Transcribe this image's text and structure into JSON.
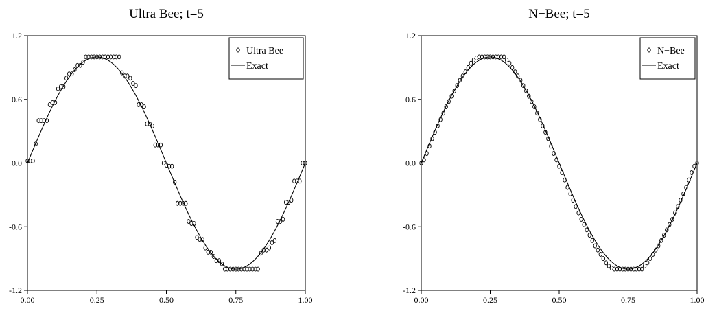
{
  "chart_data": [
    {
      "type": "line",
      "title": "Ultra Bee; t=5",
      "xlabel": "",
      "ylabel": "",
      "xlim": [
        0.0,
        1.0
      ],
      "ylim": [
        -1.2,
        1.2
      ],
      "x_ticks": [
        "0.00",
        "0.25",
        "0.50",
        "0.75",
        "1.00"
      ],
      "y_ticks": [
        "1.2",
        "0.6",
        "0.0",
        "-0.6",
        "-1.2"
      ],
      "zero_line": "dotted",
      "legend_position": "top-right",
      "series": [
        {
          "name": "Ultra Bee",
          "style": "open-circle-markers",
          "x": [
            0.0,
            0.01,
            0.02,
            0.03,
            0.04,
            0.05,
            0.06,
            0.07,
            0.08,
            0.09,
            0.1,
            0.11,
            0.12,
            0.13,
            0.14,
            0.15,
            0.16,
            0.17,
            0.18,
            0.19,
            0.2,
            0.21,
            0.22,
            0.23,
            0.24,
            0.25,
            0.26,
            0.27,
            0.28,
            0.29,
            0.3,
            0.31,
            0.32,
            0.33,
            0.34,
            0.35,
            0.36,
            0.37,
            0.38,
            0.39,
            0.4,
            0.41,
            0.42,
            0.43,
            0.44,
            0.45,
            0.46,
            0.47,
            0.48,
            0.49,
            0.5,
            0.51,
            0.52,
            0.53,
            0.54,
            0.55,
            0.56,
            0.57,
            0.58,
            0.59,
            0.6,
            0.61,
            0.62,
            0.63,
            0.64,
            0.65,
            0.66,
            0.67,
            0.68,
            0.69,
            0.7,
            0.71,
            0.72,
            0.73,
            0.74,
            0.75,
            0.76,
            0.77,
            0.78,
            0.79,
            0.8,
            0.81,
            0.82,
            0.83,
            0.84,
            0.85,
            0.86,
            0.87,
            0.88,
            0.89,
            0.9,
            0.91,
            0.92,
            0.93,
            0.94,
            0.95,
            0.96,
            0.97,
            0.98,
            0.99,
            1.0
          ],
          "y": [
            0.02,
            0.02,
            0.02,
            0.18,
            0.4,
            0.4,
            0.4,
            0.4,
            0.55,
            0.57,
            0.57,
            0.7,
            0.72,
            0.72,
            0.8,
            0.84,
            0.84,
            0.88,
            0.92,
            0.92,
            0.95,
            1.0,
            1.0,
            1.0,
            1.0,
            1.0,
            1.0,
            1.0,
            1.0,
            1.0,
            1.0,
            1.0,
            1.0,
            1.0,
            0.85,
            0.82,
            0.82,
            0.8,
            0.75,
            0.73,
            0.55,
            0.55,
            0.53,
            0.37,
            0.37,
            0.35,
            0.17,
            0.17,
            0.17,
            0.0,
            -0.02,
            -0.03,
            -0.03,
            -0.18,
            -0.38,
            -0.38,
            -0.38,
            -0.38,
            -0.55,
            -0.57,
            -0.57,
            -0.7,
            -0.72,
            -0.72,
            -0.8,
            -0.84,
            -0.84,
            -0.88,
            -0.92,
            -0.92,
            -0.95,
            -1.0,
            -1.0,
            -1.0,
            -1.0,
            -1.0,
            -1.0,
            -1.0,
            -1.0,
            -1.0,
            -1.0,
            -1.0,
            -1.0,
            -1.0,
            -0.85,
            -0.82,
            -0.82,
            -0.8,
            -0.75,
            -0.73,
            -0.55,
            -0.55,
            -0.53,
            -0.37,
            -0.37,
            -0.35,
            -0.17,
            -0.17,
            -0.17,
            0.0,
            0.0
          ]
        },
        {
          "name": "Exact",
          "style": "solid-line",
          "function": "sin(2*pi*x)"
        }
      ]
    },
    {
      "type": "line",
      "title": "N−Bee; t=5",
      "xlabel": "",
      "ylabel": "",
      "xlim": [
        0.0,
        1.0
      ],
      "ylim": [
        -1.2,
        1.2
      ],
      "x_ticks": [
        "0.00",
        "0.25",
        "0.50",
        "0.75",
        "1.00"
      ],
      "y_ticks": [
        "1.2",
        "0.6",
        "0.0",
        "-0.6",
        "-1.2"
      ],
      "zero_line": "dotted",
      "legend_position": "top-right",
      "series": [
        {
          "name": "N−Bee",
          "style": "open-circle-markers",
          "x": [
            0.0,
            0.01,
            0.02,
            0.03,
            0.04,
            0.05,
            0.06,
            0.07,
            0.08,
            0.09,
            0.1,
            0.11,
            0.12,
            0.13,
            0.14,
            0.15,
            0.16,
            0.17,
            0.18,
            0.19,
            0.2,
            0.21,
            0.22,
            0.23,
            0.24,
            0.25,
            0.26,
            0.27,
            0.28,
            0.29,
            0.3,
            0.31,
            0.32,
            0.33,
            0.34,
            0.35,
            0.36,
            0.37,
            0.38,
            0.39,
            0.4,
            0.41,
            0.42,
            0.43,
            0.44,
            0.45,
            0.46,
            0.47,
            0.48,
            0.49,
            0.5,
            0.51,
            0.52,
            0.53,
            0.54,
            0.55,
            0.56,
            0.57,
            0.58,
            0.59,
            0.6,
            0.61,
            0.62,
            0.63,
            0.64,
            0.65,
            0.66,
            0.67,
            0.68,
            0.69,
            0.7,
            0.71,
            0.72,
            0.73,
            0.74,
            0.75,
            0.76,
            0.77,
            0.78,
            0.79,
            0.8,
            0.81,
            0.82,
            0.83,
            0.84,
            0.85,
            0.86,
            0.87,
            0.88,
            0.89,
            0.9,
            0.91,
            0.92,
            0.93,
            0.94,
            0.95,
            0.96,
            0.97,
            0.98,
            0.99,
            1.0
          ],
          "y": [
            0.0,
            0.03,
            0.09,
            0.16,
            0.23,
            0.29,
            0.35,
            0.41,
            0.47,
            0.53,
            0.58,
            0.63,
            0.68,
            0.73,
            0.78,
            0.82,
            0.86,
            0.9,
            0.94,
            0.97,
            0.99,
            1.0,
            1.0,
            1.0,
            1.0,
            1.0,
            1.0,
            1.0,
            1.0,
            1.0,
            1.0,
            0.97,
            0.94,
            0.9,
            0.86,
            0.82,
            0.78,
            0.73,
            0.68,
            0.63,
            0.58,
            0.53,
            0.47,
            0.41,
            0.35,
            0.29,
            0.23,
            0.16,
            0.09,
            0.03,
            -0.03,
            -0.09,
            -0.16,
            -0.23,
            -0.29,
            -0.35,
            -0.41,
            -0.47,
            -0.53,
            -0.58,
            -0.63,
            -0.68,
            -0.73,
            -0.78,
            -0.82,
            -0.86,
            -0.9,
            -0.94,
            -0.97,
            -0.99,
            -1.0,
            -1.0,
            -1.0,
            -1.0,
            -1.0,
            -1.0,
            -1.0,
            -1.0,
            -1.0,
            -1.0,
            -1.0,
            -0.97,
            -0.94,
            -0.9,
            -0.86,
            -0.82,
            -0.78,
            -0.73,
            -0.68,
            -0.63,
            -0.58,
            -0.53,
            -0.47,
            -0.41,
            -0.35,
            -0.29,
            -0.23,
            -0.16,
            -0.09,
            -0.03,
            0.0
          ]
        },
        {
          "name": "Exact",
          "style": "solid-line",
          "function": "sin(2*pi*x)"
        }
      ]
    }
  ]
}
